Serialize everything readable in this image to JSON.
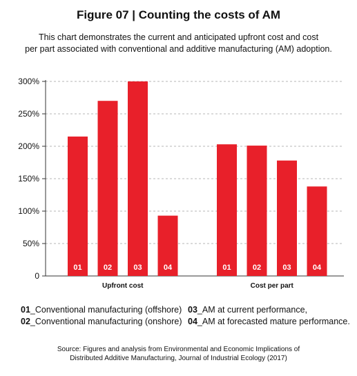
{
  "title": "Figure 07 | Counting the costs of AM",
  "subtitle_line1": "This chart demonstrates the current and anticipated upfront cost and cost",
  "subtitle_line2": "per part associated with conventional and additive manufacturing (AM) adoption.",
  "chart_data": {
    "type": "bar",
    "y_ticks": [
      "300%",
      "250%",
      "200%",
      "150%",
      "100%",
      "50%",
      "0"
    ],
    "ylim": [
      0,
      300
    ],
    "grid": true,
    "bar_color": "#e8202a",
    "groups": [
      {
        "name": "Upfront cost",
        "bars": [
          {
            "label": "01",
            "value": 215
          },
          {
            "label": "02",
            "value": 270
          },
          {
            "label": "03",
            "value": 300
          },
          {
            "label": "04",
            "value": 93
          }
        ]
      },
      {
        "name": "Cost per part",
        "bars": [
          {
            "label": "01",
            "value": 203
          },
          {
            "label": "02",
            "value": 201
          },
          {
            "label": "03",
            "value": 178
          },
          {
            "label": "04",
            "value": 138
          }
        ]
      }
    ]
  },
  "legend": {
    "item1_code": "01",
    "item1_text": "_Conventional manufacturing (offshore)",
    "item2_code": "02",
    "item2_text": "_Conventional manufacturing (onshore)",
    "item3_code": "03",
    "item3_text": "_AM at current performance,",
    "item4_code": "04",
    "item4_text": "_AM at forecasted mature performance."
  },
  "source_line1": "Source: Figures and analysis from Environmental and Economic Implications of",
  "source_line2": "Distributed Additive Manufacturing, Journal of Industrial Ecology (2017)"
}
